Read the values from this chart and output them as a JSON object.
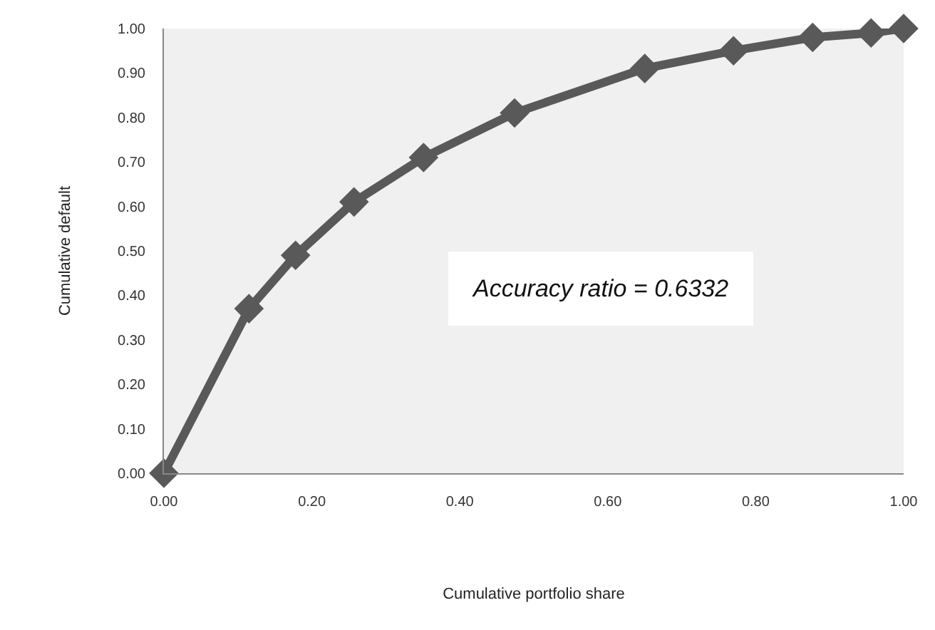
{
  "chart_data": {
    "type": "line",
    "xlabel": "Cumulative portfolio share",
    "ylabel": "Cumulative default",
    "annotations": [
      "Accuracy ratio = 0.6332"
    ],
    "x": [
      0,
      0.115,
      0.178,
      0.257,
      0.351,
      0.474,
      0.65,
      0.77,
      0.877,
      0.956,
      1.0
    ],
    "series": [
      {
        "color": "#595959",
        "values": [
          0,
          0.37,
          0.49,
          0.61,
          0.71,
          0.81,
          0.91,
          0.95,
          0.98,
          0.99,
          1.0
        ]
      }
    ],
    "xlim": [
      0,
      1
    ],
    "ylim": [
      0,
      1
    ],
    "xticks": [
      {
        "value": 0,
        "label": "0.00"
      },
      {
        "value": 0.2,
        "label": "0.20"
      },
      {
        "value": 0.4,
        "label": "0.40"
      },
      {
        "value": 0.6,
        "label": "0.60"
      },
      {
        "value": 0.8,
        "label": "0.80"
      },
      {
        "value": 1,
        "label": "1.00"
      }
    ],
    "yticks": [
      {
        "value": 0,
        "label": "0.00"
      },
      {
        "value": 0.1,
        "label": "0.10"
      },
      {
        "value": 0.2,
        "label": "0.20"
      },
      {
        "value": 0.3,
        "label": "0.30"
      },
      {
        "value": 0.4,
        "label": "0.40"
      },
      {
        "value": 0.5,
        "label": "0.50"
      },
      {
        "value": 0.6,
        "label": "0.60"
      },
      {
        "value": 0.7,
        "label": "0.70"
      },
      {
        "value": 0.8,
        "label": "0.80"
      },
      {
        "value": 0.9,
        "label": "0.90"
      },
      {
        "value": 1,
        "label": "1.00"
      }
    ],
    "grid": false,
    "marker": "diamond",
    "line_style": "solid"
  }
}
